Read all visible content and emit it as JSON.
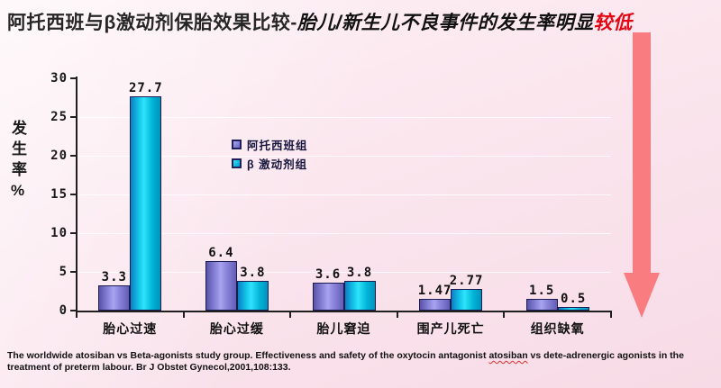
{
  "slide": {
    "title": {
      "part_plain": "阿托西班与β激动剂保胎效果比较-",
      "part_italic": "胎儿/新生儿不良事件的发生率明显",
      "part_red": "较低"
    },
    "citation": {
      "before": "The worldwide atosiban vs Beta-agonists study group. Effectiveness and safety of the oxytocin antagonist  ",
      "flagged_word": "atosiban",
      "after": " vs dete-adrenergic agonists in the treatment of preterm labour. Br J Obstet Gynecol,2001,108:133."
    }
  },
  "colors": {
    "background_pink_light": "#fdf1f5",
    "background_pink_dark": "#f7dbe6",
    "title_red": "#e30613",
    "arrow_red": "#f97d80",
    "atosiban_purple": "#8d87dd",
    "beta_agonist_cyan": "#14c4ea",
    "axis_black": "#1f1f1f"
  },
  "chart_data": {
    "type": "bar",
    "title": "",
    "xlabel": "",
    "ylabel": "发生率%",
    "ylim": [
      0,
      30
    ],
    "yticks": [
      0,
      5,
      10,
      15,
      20,
      25,
      30
    ],
    "grid": true,
    "legend_position": "inside-center-left",
    "categories": [
      "胎心过速",
      "胎心过缓",
      "胎儿窘迫",
      "围产儿死亡",
      "组织缺氧"
    ],
    "series": [
      {
        "name": "阿托西班组",
        "values": [
          3.3,
          6.4,
          3.6,
          1.47,
          1.5
        ],
        "labels": [
          "3.3",
          "6.4",
          "3.6",
          "1.47",
          "1.5"
        ]
      },
      {
        "name": "β 激动剂组",
        "values": [
          27.7,
          3.8,
          3.8,
          2.77,
          0.5
        ],
        "labels": [
          "27.7",
          "3.8",
          "3.8",
          "2.77",
          "0.5"
        ]
      }
    ]
  }
}
